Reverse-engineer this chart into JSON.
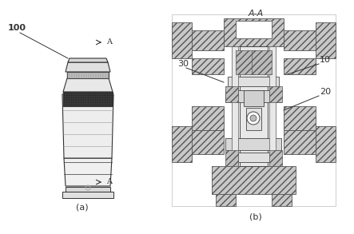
{
  "bg_color": "#f5f5f5",
  "line_color": "#555555",
  "dark_line": "#333333",
  "hatch_color": "#888888",
  "label_100": "100",
  "label_30": "30",
  "label_10": "10",
  "label_20": "20",
  "label_a": "(a)",
  "label_b": "(b)",
  "section_label": "A-A",
  "arrow_label": "A",
  "fig_width": 4.43,
  "fig_height": 2.93,
  "dpi": 100
}
